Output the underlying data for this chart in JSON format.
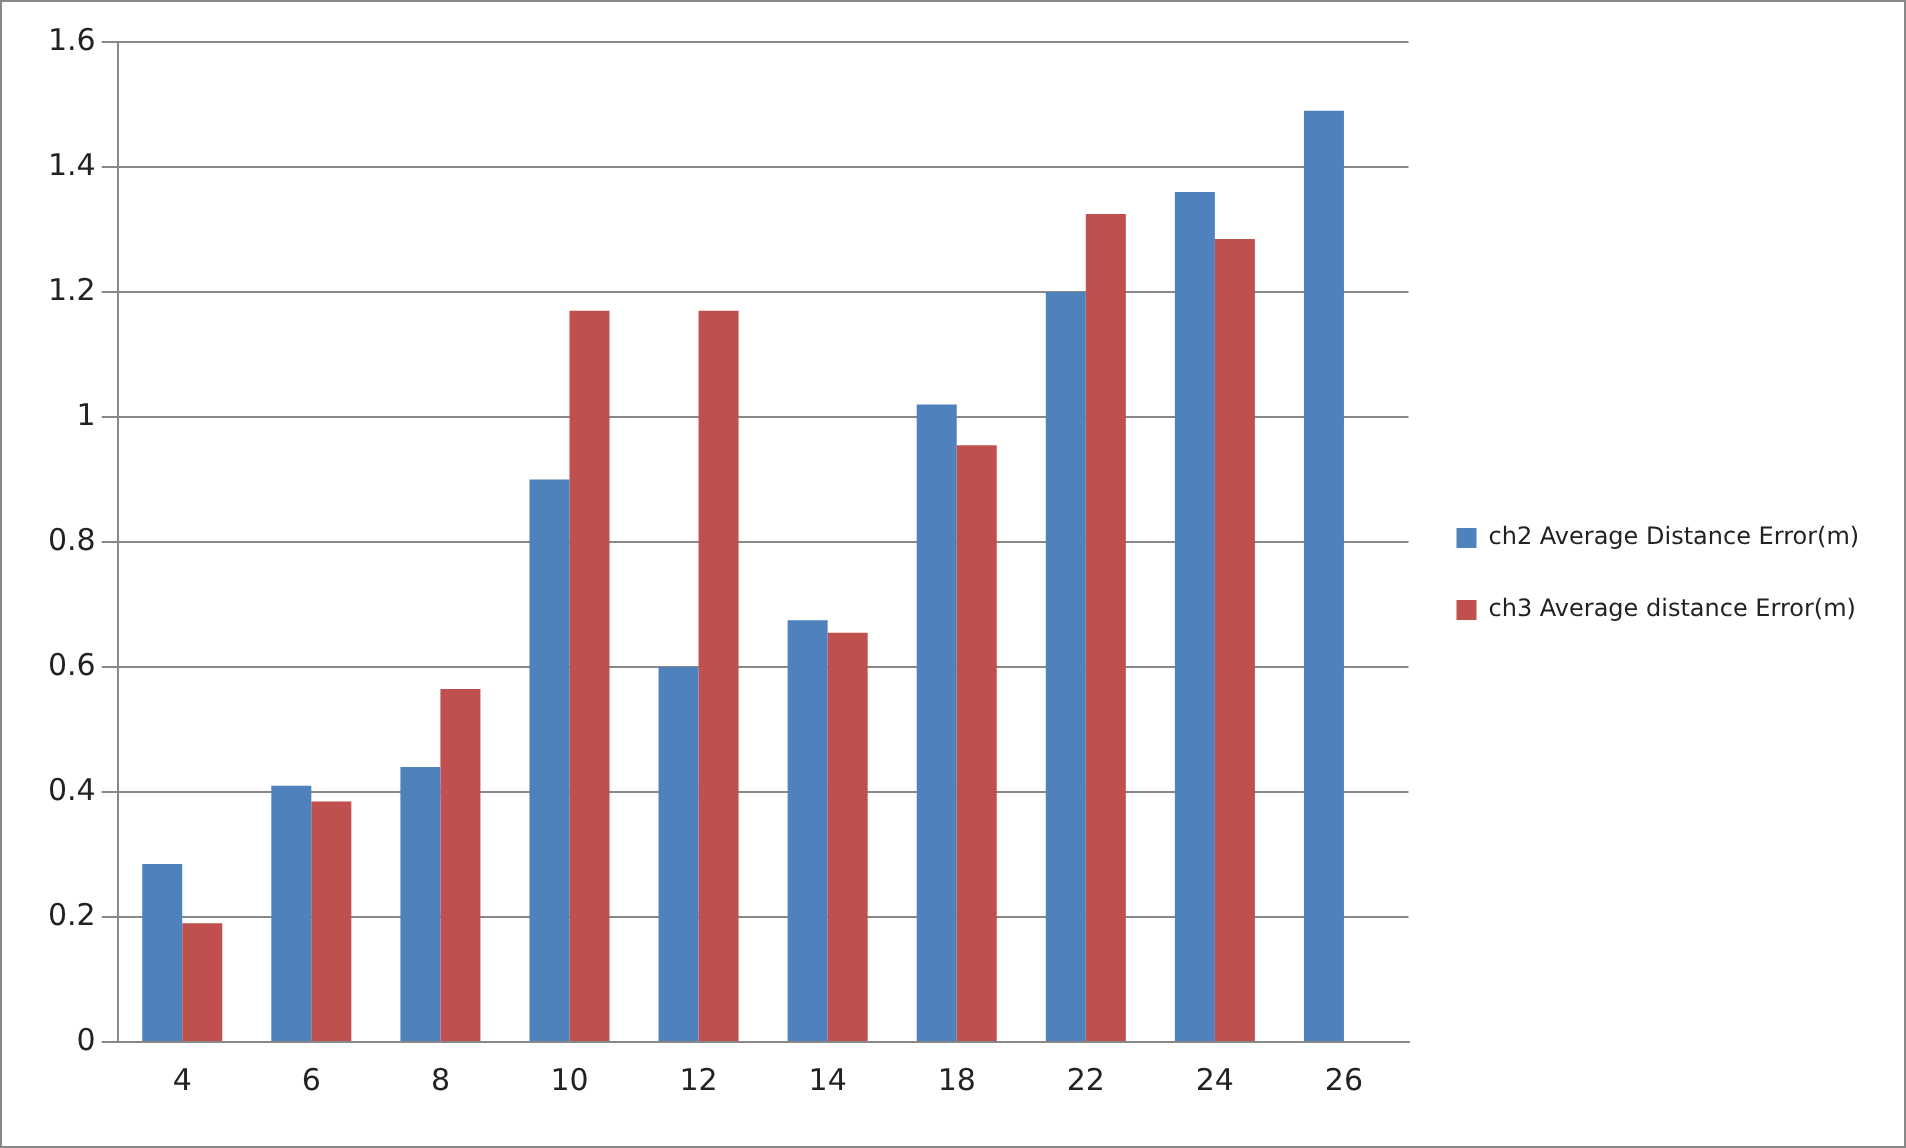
{
  "chart_data": {
    "type": "bar",
    "categories": [
      "4",
      "6",
      "8",
      "10",
      "12",
      "14",
      "18",
      "22",
      "24",
      "26"
    ],
    "series": [
      {
        "name": "ch2 Average Distance Error(m)",
        "color": "#4f81bd",
        "values": [
          0.285,
          0.41,
          0.44,
          0.9,
          0.6,
          0.675,
          1.02,
          1.2,
          1.36,
          1.49
        ]
      },
      {
        "name": "ch3 Average distance Error(m)",
        "color": "#c0504d",
        "values": [
          0.19,
          0.385,
          0.565,
          1.17,
          1.17,
          0.655,
          0.955,
          1.325,
          1.285,
          null
        ]
      }
    ],
    "ylim": [
      0,
      1.6
    ],
    "yticks": [
      0,
      0.2,
      0.4,
      0.6,
      0.8,
      1,
      1.2,
      1.4,
      1.6
    ],
    "grid": "y",
    "legend": "right"
  }
}
